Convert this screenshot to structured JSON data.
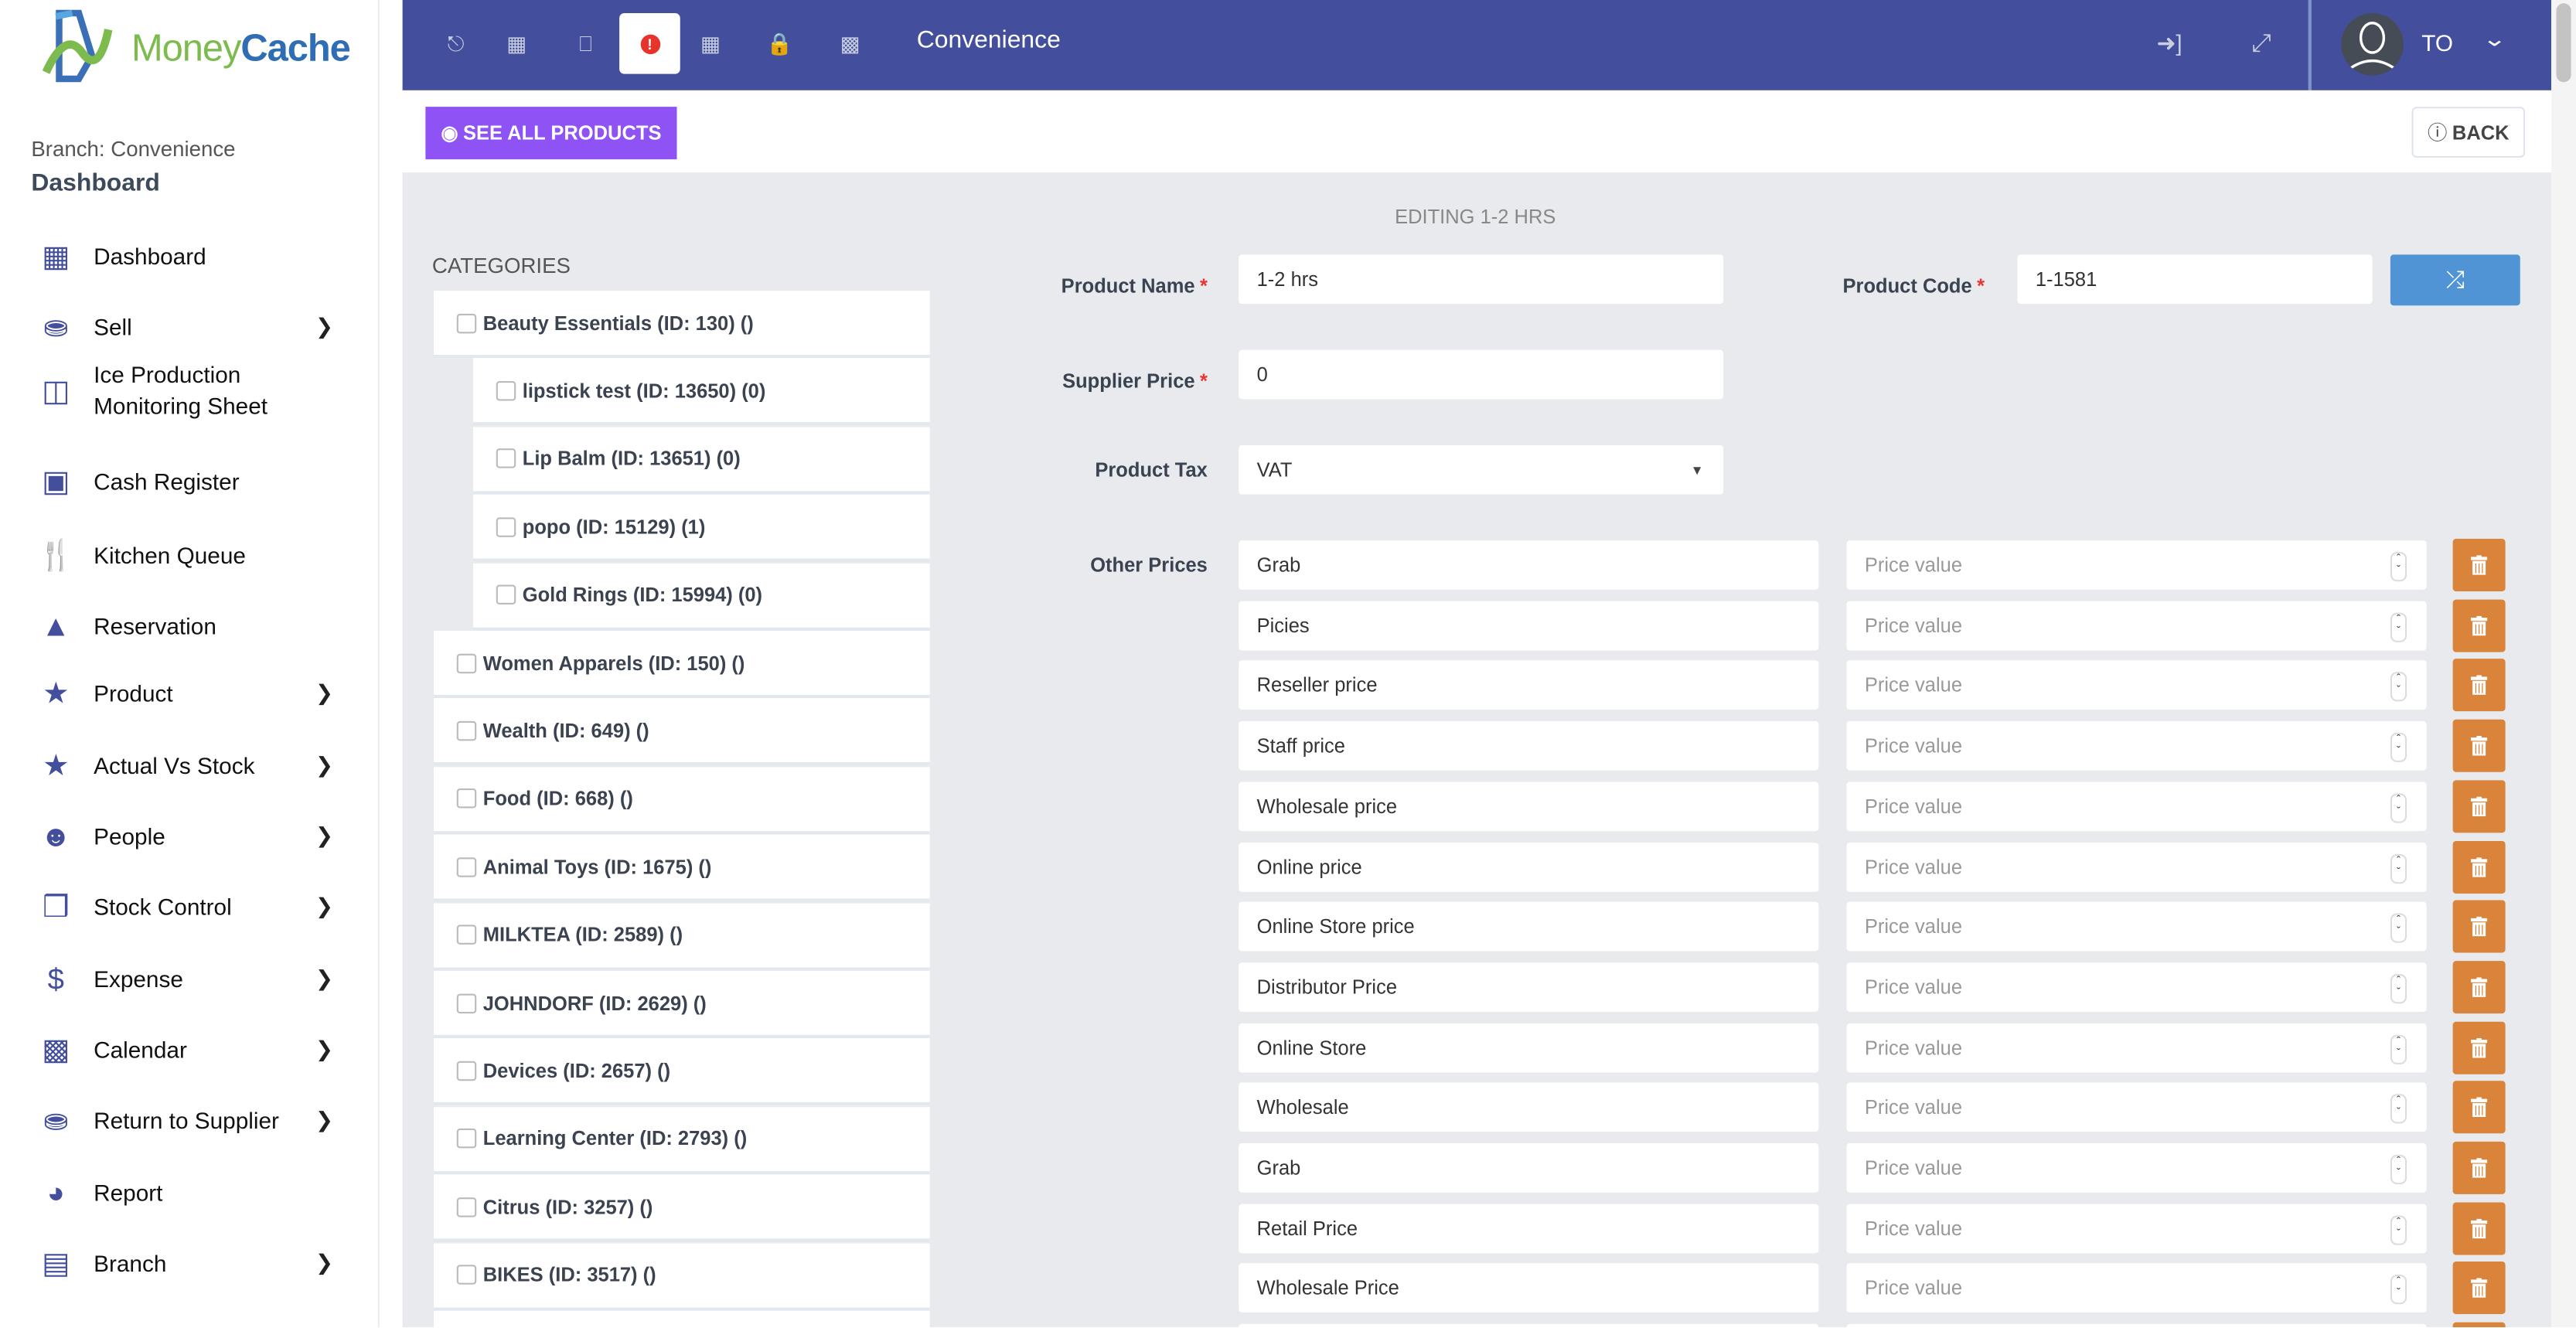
{
  "brand": {
    "name_part1": "Money",
    "name_part2": "Cache",
    "colors": {
      "primary": "#434f9c",
      "purple": "#8e52f5",
      "blue": "#5094d6",
      "orange": "#d9843a"
    }
  },
  "sidebar": {
    "branch_line": "Branch: Convenience",
    "section_title": "Dashboard",
    "items": [
      {
        "label": "Dashboard",
        "icon": "grid-icon",
        "chevron": false
      },
      {
        "label": "Sell",
        "icon": "coins-icon",
        "chevron": true
      },
      {
        "label": "Ice Production Monitoring Sheet",
        "icon": "ice-cube-icon",
        "chevron": false
      },
      {
        "label": "Cash Register",
        "icon": "cash-register-icon",
        "chevron": false
      },
      {
        "label": "Kitchen Queue",
        "icon": "utensils-icon",
        "chevron": false
      },
      {
        "label": "Reservation",
        "icon": "concierge-bell-icon",
        "chevron": false
      },
      {
        "label": "Product",
        "icon": "star-icon",
        "chevron": true
      },
      {
        "label": "Actual Vs Stock",
        "icon": "star-icon",
        "chevron": true
      },
      {
        "label": "People",
        "icon": "smile-icon",
        "chevron": true
      },
      {
        "label": "Stock Control",
        "icon": "cubes-icon",
        "chevron": true
      },
      {
        "label": "Expense",
        "icon": "dollar-icon",
        "chevron": true
      },
      {
        "label": "Calendar",
        "icon": "calendar-icon",
        "chevron": true
      },
      {
        "label": "Return to Supplier",
        "icon": "coins-icon",
        "chevron": true
      },
      {
        "label": "Report",
        "icon": "pie-chart-icon",
        "chevron": false
      },
      {
        "label": "Branch",
        "icon": "store-icon",
        "chevron": true
      }
    ]
  },
  "topbar": {
    "title": "Convenience",
    "icons": [
      "hand-dollar-icon",
      "calculator-icon",
      "desktop-icon",
      "alert-icon",
      "windows-icon",
      "lock-icon",
      "bar-chart-icon"
    ],
    "active_icon": "alert-icon",
    "user_initials": "TO"
  },
  "actions": {
    "see_all": "SEE ALL PRODUCTS",
    "back": "BACK"
  },
  "editing_title": "EDITING 1-2 HRS",
  "categories": {
    "heading": "CATEGORIES",
    "items": [
      {
        "label": "Beauty Essentials (ID: 130) ()",
        "level": 0
      },
      {
        "label": "lipstick test (ID: 13650) (0)",
        "level": 1
      },
      {
        "label": "Lip Balm (ID: 13651) (0)",
        "level": 1
      },
      {
        "label": "popo (ID: 15129) (1)",
        "level": 1
      },
      {
        "label": "Gold Rings (ID: 15994) (0)",
        "level": 1
      },
      {
        "label": "Women Apparels (ID: 150) ()",
        "level": 0
      },
      {
        "label": "Wealth (ID: 649) ()",
        "level": 0
      },
      {
        "label": "Food (ID: 668) ()",
        "level": 0
      },
      {
        "label": "Animal Toys (ID: 1675) ()",
        "level": 0
      },
      {
        "label": "MILKTEA (ID: 2589) ()",
        "level": 0
      },
      {
        "label": "JOHNDORF (ID: 2629) ()",
        "level": 0
      },
      {
        "label": "Devices (ID: 2657) ()",
        "level": 0
      },
      {
        "label": "Learning Center (ID: 2793) ()",
        "level": 0
      },
      {
        "label": "Citrus (ID: 3257) ()",
        "level": 0
      },
      {
        "label": "BIKES (ID: 3517) ()",
        "level": 0
      }
    ]
  },
  "form": {
    "product_name": {
      "label": "Product Name",
      "value": "1-2 hrs"
    },
    "product_code": {
      "label": "Product Code",
      "value": "1-1581"
    },
    "supplier_price": {
      "label": "Supplier Price",
      "value": "0"
    },
    "product_tax": {
      "label": "Product Tax",
      "value": "VAT"
    },
    "other_prices": {
      "label": "Other Prices",
      "price_placeholder": "Price value",
      "rows": [
        "Grab",
        "Picies",
        "Reseller price",
        "Staff price",
        "Wholesale price",
        "Online price",
        "Online Store price",
        "Distributor Price",
        "Online Store",
        "Wholesale",
        "Grab",
        "Retail Price",
        "Wholesale Price"
      ]
    }
  }
}
